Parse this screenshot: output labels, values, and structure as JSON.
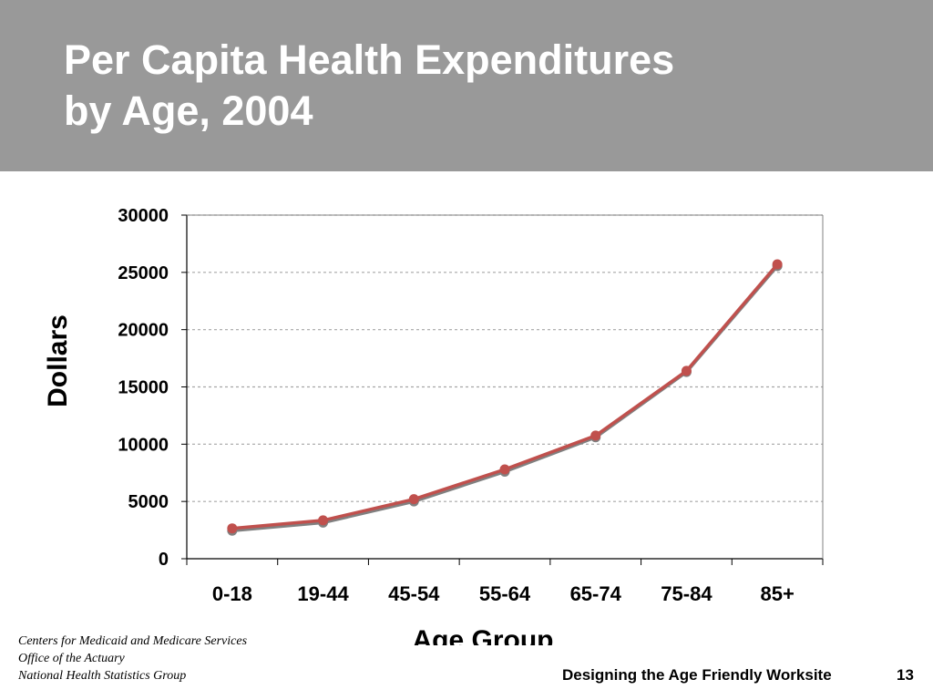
{
  "slide": {
    "title_lines": [
      "Per Capita Health Expenditures",
      "by Age, 2004"
    ],
    "source_lines": [
      "Centers for Medicaid and Medicare Services",
      "Office of the Actuary",
      "National Health Statistics Group"
    ],
    "footer_text": "Designing the Age Friendly Worksite",
    "page_number": "13"
  },
  "colors": {
    "header_bg": "#999999",
    "series_primary": "#C0504D",
    "series_secondary": "#808080",
    "gridline": "#A6A6A6"
  },
  "chart_data": {
    "type": "line",
    "title": "",
    "xlabel": "Age Group",
    "ylabel": "Dollars",
    "categories": [
      "0-18",
      "19-44",
      "45-54",
      "55-64",
      "65-74",
      "75-84",
      "85+"
    ],
    "ylim": [
      0,
      30000
    ],
    "yticks": [
      "0",
      "5000",
      "10000",
      "15000",
      "20000",
      "25000",
      "30000"
    ],
    "grid": true,
    "legend": "none",
    "series": [
      {
        "values": [
          2650,
          3350,
          5200,
          7800,
          10750,
          16400,
          25700
        ]
      },
      {
        "values": [
          2450,
          3150,
          5000,
          7600,
          10600,
          16300,
          25550
        ]
      }
    ]
  }
}
